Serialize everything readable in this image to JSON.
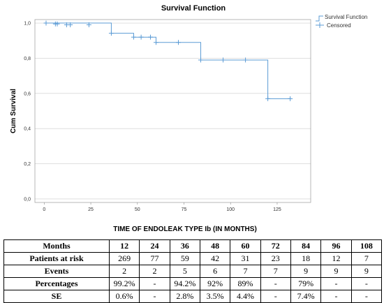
{
  "chart_data": {
    "type": "line",
    "title": "Survival Function",
    "xlabel": "TIME OF ENDOLEAK TYPE Ib (IN MONTHS)",
    "ylabel": "Cum Survival",
    "xlim": [
      -5,
      143
    ],
    "ylim": [
      -0.02,
      1.02
    ],
    "x_ticks": [
      0,
      25,
      50,
      75,
      100,
      125
    ],
    "y_ticks": [
      0.0,
      0.2,
      0.4,
      0.6,
      0.8,
      1.0
    ],
    "y_tick_labels": [
      "0,0",
      "0,2",
      "0,4",
      "0,6",
      "0,8",
      "1,0"
    ],
    "grid": "horizontal",
    "legend_position": "top-right",
    "line_color": "#5b9bd5",
    "series": [
      {
        "name": "Survival Function",
        "x": [
          0,
          36,
          48,
          60,
          84,
          120,
          132
        ],
        "y": [
          1.0,
          0.942,
          0.92,
          0.89,
          0.79,
          0.57,
          0.57
        ]
      },
      {
        "name": "Censored",
        "x": [
          1,
          6,
          7,
          12,
          14,
          24,
          36,
          48,
          52,
          57,
          60,
          72,
          84,
          96,
          108,
          120,
          132
        ],
        "y": [
          1.0,
          0.995,
          0.995,
          0.99,
          0.99,
          0.99,
          0.942,
          0.92,
          0.92,
          0.92,
          0.89,
          0.89,
          0.79,
          0.79,
          0.79,
          0.57,
          0.57
        ]
      }
    ]
  },
  "table": {
    "header": [
      "Months",
      "12",
      "24",
      "36",
      "48",
      "60",
      "72",
      "84",
      "96",
      "108"
    ],
    "rows": [
      [
        "Patients at risk",
        "269",
        "77",
        "59",
        "42",
        "31",
        "23",
        "18",
        "12",
        "7"
      ],
      [
        "Events",
        "2",
        "2",
        "5",
        "6",
        "7",
        "7",
        "9",
        "9",
        "9"
      ],
      [
        "Percentages",
        "99.2%",
        "-",
        "94.2%",
        "92%",
        "89%",
        "-",
        "79%",
        "-",
        "-"
      ],
      [
        "SE",
        "0.6%",
        "-",
        "2.8%",
        "3.5%",
        "4.4%",
        "-",
        "7.4%",
        "-",
        "-"
      ]
    ]
  }
}
